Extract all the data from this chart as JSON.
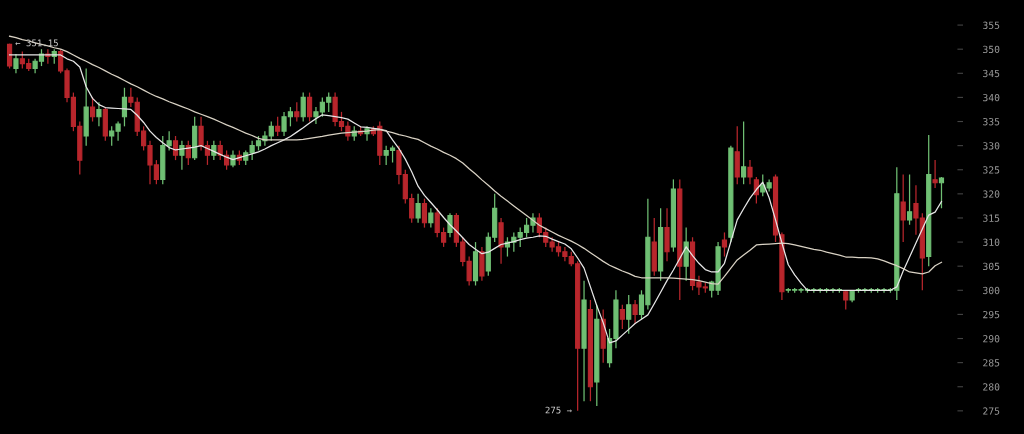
{
  "chart_data": {
    "type": "candlestick",
    "categories": [
      null,
      null,
      null,
      null,
      null,
      null,
      null,
      null,
      null,
      null,
      null,
      null,
      null,
      null,
      null,
      null,
      null,
      null,
      null,
      null,
      null,
      null,
      null,
      null,
      null,
      null,
      null,
      null,
      null,
      null,
      null,
      null,
      null,
      null,
      null,
      null,
      null,
      null,
      null,
      null,
      null,
      null,
      null,
      null,
      null,
      null,
      null,
      null,
      null,
      null,
      null,
      null,
      null,
      null,
      null,
      null,
      null,
      null,
      null,
      null,
      null,
      null,
      null,
      null,
      null,
      null,
      null,
      null,
      null,
      null,
      null,
      null,
      null,
      null,
      null,
      null,
      null,
      null,
      null,
      null,
      null,
      null,
      null,
      null,
      null,
      null,
      null,
      null,
      null,
      null,
      null,
      null,
      null,
      null,
      null,
      null,
      null,
      null,
      null,
      null,
      null,
      null,
      null,
      null,
      null,
      null,
      null,
      null,
      null,
      null,
      null,
      null,
      null,
      null,
      null,
      null,
      null,
      null,
      null,
      null,
      null,
      null,
      null,
      null,
      null,
      null,
      null,
      null,
      null,
      null,
      null,
      null,
      null,
      null,
      null,
      null,
      null,
      null,
      null,
      null,
      null,
      null,
      null,
      null,
      null,
      null,
      null
    ],
    "ohlc": [
      [
        351,
        351.15,
        346,
        346.5
      ],
      [
        346,
        349,
        345,
        348
      ],
      [
        348,
        349.5,
        346,
        347
      ],
      [
        347,
        348,
        345.5,
        346
      ],
      [
        346,
        348,
        345,
        347.5
      ],
      [
        347.5,
        350,
        346.5,
        349
      ],
      [
        349,
        350,
        347,
        348.5
      ],
      [
        348.5,
        350,
        347,
        349.5
      ],
      [
        349.5,
        350,
        345,
        345.5
      ],
      [
        345.5,
        346,
        339,
        340
      ],
      [
        340,
        341,
        333,
        334
      ],
      [
        334,
        335,
        324,
        327
      ],
      [
        332,
        346,
        330,
        338
      ],
      [
        338,
        340,
        335,
        336
      ],
      [
        336,
        339,
        334,
        337.5
      ],
      [
        337.5,
        338,
        331,
        332
      ],
      [
        332,
        334,
        330,
        333
      ],
      [
        333,
        335,
        331,
        334.5
      ],
      [
        336,
        342,
        334,
        340
      ],
      [
        340,
        342,
        338,
        339
      ],
      [
        339,
        340,
        332,
        333
      ],
      [
        333,
        334,
        329,
        330
      ],
      [
        330,
        331,
        322,
        326
      ],
      [
        326,
        327,
        322,
        323
      ],
      [
        323,
        332,
        322,
        330
      ],
      [
        330,
        333,
        329,
        331
      ],
      [
        331,
        332,
        327,
        328
      ],
      [
        328,
        331,
        325,
        330
      ],
      [
        330,
        331,
        326,
        327.5
      ],
      [
        327.5,
        336,
        327,
        334
      ],
      [
        334,
        336,
        329,
        330
      ],
      [
        330,
        331,
        326,
        328
      ],
      [
        328,
        331,
        327,
        330
      ],
      [
        330,
        331,
        327,
        328
      ],
      [
        328,
        329,
        325,
        326
      ],
      [
        326,
        329,
        325.5,
        328
      ],
      [
        328,
        329,
        326,
        327
      ],
      [
        327,
        329,
        326,
        328.5
      ],
      [
        328.5,
        331,
        327,
        330
      ],
      [
        330,
        332,
        329,
        331
      ],
      [
        331,
        333,
        330,
        332
      ],
      [
        332,
        335,
        331,
        334
      ],
      [
        334,
        336,
        332,
        333
      ],
      [
        333,
        337,
        332,
        336
      ],
      [
        336,
        338,
        334,
        337
      ],
      [
        337,
        339,
        335,
        336
      ],
      [
        336,
        341,
        335,
        340
      ],
      [
        340,
        341,
        335,
        336
      ],
      [
        336,
        338,
        334.5,
        337
      ],
      [
        337,
        340,
        336,
        339
      ],
      [
        339,
        341,
        337,
        340
      ],
      [
        340,
        341,
        334,
        335
      ],
      [
        335,
        337,
        333,
        334
      ],
      [
        334,
        335,
        331,
        332
      ],
      [
        332,
        334,
        331,
        333
      ],
      [
        333,
        334,
        332,
        332.5
      ],
      [
        332.5,
        334,
        331,
        333.5
      ],
      [
        333.5,
        334,
        332,
        332.5
      ],
      [
        334,
        335,
        326,
        328
      ],
      [
        328,
        330,
        326,
        329
      ],
      [
        329,
        330,
        326.5,
        329.5
      ],
      [
        329,
        330,
        322,
        324
      ],
      [
        324,
        325,
        318,
        319
      ],
      [
        319,
        320,
        314,
        315
      ],
      [
        315,
        320,
        314,
        318
      ],
      [
        318,
        319,
        313,
        314
      ],
      [
        314,
        317,
        313,
        316
      ],
      [
        316,
        317,
        311,
        312
      ],
      [
        312,
        313,
        309,
        310
      ],
      [
        312,
        316,
        311,
        315.5
      ],
      [
        315.5,
        316,
        309,
        310
      ],
      [
        310,
        311,
        305,
        306
      ],
      [
        306,
        307,
        301,
        302
      ],
      [
        302,
        310,
        301,
        308
      ],
      [
        308,
        309,
        302,
        303
      ],
      [
        304,
        312,
        303,
        311
      ],
      [
        311,
        320,
        310,
        317
      ],
      [
        314,
        315,
        305.5,
        309
      ],
      [
        309,
        311,
        307,
        310
      ],
      [
        310,
        312,
        308,
        311
      ],
      [
        311,
        313,
        309,
        312
      ],
      [
        312,
        315,
        311,
        313.5
      ],
      [
        313.5,
        316,
        312,
        315
      ],
      [
        315,
        316,
        311,
        312
      ],
      [
        312,
        313,
        309,
        310
      ],
      [
        310,
        311,
        308,
        309
      ],
      [
        309,
        310,
        307,
        308
      ],
      [
        308,
        309,
        306,
        307
      ],
      [
        307,
        308,
        305,
        305.5
      ],
      [
        305.5,
        306,
        275,
        288
      ],
      [
        288,
        302,
        277,
        298
      ],
      [
        296,
        298,
        277,
        280
      ],
      [
        281,
        297,
        276,
        294
      ],
      [
        294,
        296,
        285,
        288
      ],
      [
        285,
        292,
        284,
        290
      ],
      [
        290,
        300,
        288,
        298
      ],
      [
        296,
        297,
        292,
        294
      ],
      [
        294,
        299,
        291,
        297
      ],
      [
        297,
        298,
        293,
        295
      ],
      [
        295,
        300,
        294,
        299
      ],
      [
        297,
        319,
        296,
        311
      ],
      [
        310,
        315,
        303,
        304
      ],
      [
        304,
        317,
        302,
        313
      ],
      [
        313,
        317,
        306,
        308
      ],
      [
        309,
        323,
        308,
        321
      ],
      [
        321,
        323,
        298,
        305
      ],
      [
        305,
        313,
        302,
        310
      ],
      [
        310,
        311,
        300,
        301
      ],
      [
        301.7,
        303,
        299,
        300.7
      ],
      [
        300.7,
        301.5,
        299.5,
        300.5
      ],
      [
        300,
        302,
        298.5,
        301.7
      ],
      [
        300,
        310,
        299,
        309
      ],
      [
        310.4,
        312,
        307,
        309
      ],
      [
        311,
        330,
        310,
        329.5
      ],
      [
        328.7,
        334,
        322,
        323.5
      ],
      [
        323.5,
        335,
        322,
        325.6
      ],
      [
        325.5,
        327,
        322,
        323.5
      ],
      [
        322.9,
        323.5,
        318,
        319.8
      ],
      [
        320.4,
        324,
        319.5,
        321.8
      ],
      [
        321.2,
        323,
        320.5,
        322.3
      ],
      [
        323.5,
        324,
        310,
        311.5
      ],
      [
        311.5,
        312,
        298,
        299.7
      ],
      [
        300,
        300.5,
        299.5,
        300
      ],
      [
        300,
        300.5,
        299.5,
        300
      ],
      [
        300,
        300.5,
        299.5,
        300
      ],
      [
        300,
        300.5,
        299.5,
        300
      ],
      [
        300,
        300.5,
        299.5,
        300
      ],
      [
        300,
        300.5,
        299.5,
        300
      ],
      [
        300,
        300.5,
        299.5,
        300
      ],
      [
        300,
        300.5,
        299.5,
        300
      ],
      [
        300,
        300.5,
        299.5,
        300
      ],
      [
        299.7,
        300,
        296,
        298
      ],
      [
        298,
        300,
        297.5,
        299.8
      ],
      [
        300,
        300.5,
        299.5,
        300
      ],
      [
        300,
        300.5,
        299.5,
        300
      ],
      [
        300,
        300.5,
        299.5,
        300
      ],
      [
        300,
        300.5,
        299.5,
        300
      ],
      [
        300,
        300.5,
        299.5,
        300
      ],
      [
        300,
        300.5,
        299.5,
        300
      ],
      [
        300,
        325.5,
        298,
        320
      ],
      [
        318.3,
        324,
        310,
        314.6
      ],
      [
        314.6,
        324,
        313.6,
        316.3
      ],
      [
        318,
        321.8,
        311.5,
        315
      ],
      [
        315,
        316,
        300,
        306.7
      ],
      [
        307,
        332.2,
        305,
        324
      ],
      [
        322.9,
        327,
        321.2,
        322.3
      ],
      [
        322.3,
        323.5,
        317,
        323.3
      ]
    ],
    "series": [
      {
        "type": "line",
        "color": "#e6e6e6",
        "values": [
          348.8,
          348.8,
          348.8,
          348.8,
          348.8,
          348.8,
          348.8,
          348.8,
          348.8,
          348.0,
          347.5,
          346.3,
          342.2,
          339.8,
          338.5,
          337.9,
          337.8,
          337.7,
          337.6,
          337.5,
          336.3,
          334.8,
          333.0,
          331.7,
          330.6,
          329.6,
          329.1,
          329.3,
          329.5,
          329.7,
          330.0,
          329.4,
          328.8,
          328.2,
          327.6,
          327.1,
          327.5,
          327.9,
          328.3,
          328.7,
          329.3,
          330.0,
          330.6,
          331.2,
          331.9,
          332.8,
          333.7,
          334.7,
          335.6,
          336.4,
          336.2,
          336.0,
          335.8,
          335.5,
          334.7,
          333.9,
          333.8,
          333.6,
          333.4,
          333.1,
          331.2,
          329.4,
          327.2,
          324.6,
          321.6,
          319.7,
          318.2,
          316.7,
          315.1,
          313.6,
          312.3,
          310.9,
          309.5,
          308.5,
          307.6,
          307.9,
          308.7,
          309.5,
          309.8,
          310.1,
          310.5,
          310.8,
          311.0,
          311.3,
          311.2,
          310.6,
          310.1,
          309.6,
          308.6,
          306.7,
          304.6,
          300.7,
          296.8,
          293.3,
          289.1,
          289.5,
          290.7,
          291.9,
          293.1,
          294.0,
          294.9,
          297.2,
          299.6,
          302.0,
          304.2,
          306.6,
          309.0,
          307.2,
          305.6,
          304.3,
          303.8,
          303.8,
          305.6,
          310.1,
          314.6,
          316.9,
          319.1,
          320.9,
          322.4,
          319.2,
          314.6,
          309.8,
          305.3,
          303.2,
          301.5,
          300,
          300,
          300,
          300,
          300,
          300,
          300,
          300,
          300,
          300,
          300,
          300,
          300,
          300,
          300.7,
          304.0,
          306.9,
          309.8,
          312.7,
          315.6,
          316.2,
          318.4
        ]
      },
      {
        "type": "line",
        "color": "#d9d2c4",
        "values": [
          352.7,
          352.4,
          352.0,
          351.7,
          351.3,
          351.0,
          350.7,
          350.3,
          350.0,
          349.5,
          348.8,
          348.1,
          347.5,
          346.8,
          346.2,
          345.5,
          344.8,
          344.2,
          343.5,
          342.8,
          342.2,
          341.5,
          340.8,
          340.2,
          339.7,
          339.1,
          338.6,
          338.1,
          337.6,
          337.0,
          336.5,
          336.0,
          335.5,
          334.9,
          334.3,
          333.8,
          333.2,
          332.6,
          332.1,
          331.5,
          331.2,
          331.2,
          331.2,
          331.2,
          331.2,
          331.2,
          331.3,
          331.5,
          331.7,
          331.9,
          332.2,
          332.4,
          332.6,
          332.7,
          332.8,
          332.9,
          333.0,
          333.2,
          333.3,
          333.0,
          332.7,
          332.3,
          332.0,
          331.6,
          331.3,
          330.6,
          329.9,
          329.3,
          328.6,
          328.0,
          327.3,
          326.4,
          325.2,
          324.1,
          322.9,
          321.8,
          320.6,
          319.5,
          318.5,
          317.5,
          316.5,
          315.5,
          314.5,
          313.5,
          312.8,
          312.1,
          311.4,
          310.8,
          310.2,
          309.5,
          308.7,
          307.8,
          306.9,
          306.0,
          305.2,
          304.6,
          304.0,
          303.5,
          302.9,
          302.6,
          302.6,
          302.6,
          302.6,
          302.6,
          302.5,
          302.4,
          302.3,
          302.2,
          302.0,
          301.7,
          301.4,
          301.3,
          302.9,
          304.6,
          306.3,
          307.3,
          308.3,
          309.4,
          309.5,
          309.6,
          309.7,
          309.8,
          309.7,
          309.4,
          309.1,
          308.8,
          308.5,
          308.3,
          307.9,
          307.6,
          307.3,
          306.9,
          306.9,
          306.8,
          306.8,
          306.7,
          306.5,
          306.1,
          305.6,
          305.1,
          304.5,
          303.8,
          303.6,
          303.4,
          303.8,
          305.1,
          305.8
        ]
      }
    ],
    "ylim": [
      270.2,
      360.2
    ],
    "yticks": [
      275,
      280,
      285,
      290,
      295,
      300,
      305,
      310,
      315,
      320,
      325,
      330,
      335,
      340,
      345,
      350,
      355
    ],
    "tick_labels": "y",
    "grid": false,
    "annotations": [
      "← 351.15",
      "275 →"
    ]
  }
}
